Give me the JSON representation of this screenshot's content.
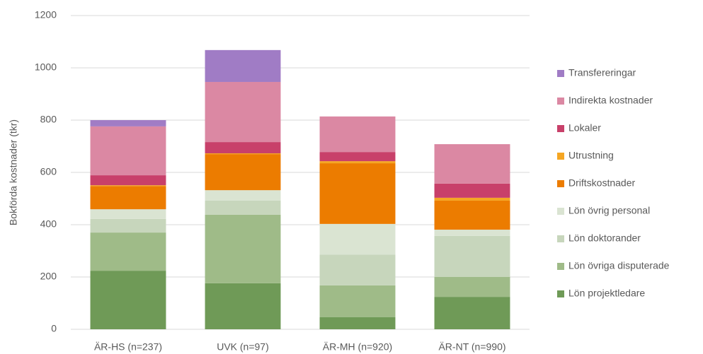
{
  "chart_data": {
    "type": "stacked_bar",
    "y_axis_label": "Bokförda kostnader (tkr)",
    "categories": [
      "ÄR-HS (n=237)",
      "UVK (n=97)",
      "ÄR-MH (n=920)",
      "ÄR-NT (n=990)"
    ],
    "ylim": [
      0,
      1200
    ],
    "yticks": [
      0,
      200,
      400,
      600,
      800,
      1000,
      1200
    ],
    "grid": true,
    "legend": "right",
    "series": [
      {
        "name": "Lön projektledare",
        "color": "#6f9a57",
        "values": [
          224,
          176,
          46,
          124
        ]
      },
      {
        "name": "Lön övriga disputerade",
        "color": "#9fbb88",
        "values": [
          146,
          262,
          122,
          76
        ]
      },
      {
        "name": "Lön doktorander",
        "color": "#c7d6bc",
        "values": [
          52,
          54,
          118,
          157
        ]
      },
      {
        "name": "Lön övrig personal",
        "color": "#dae4d2",
        "values": [
          37,
          40,
          117,
          24
        ]
      },
      {
        "name": "Driftskostnader",
        "color": "#ec7c00",
        "values": [
          89,
          138,
          232,
          111
        ]
      },
      {
        "name": "Utrustning",
        "color": "#f5a623",
        "values": [
          3,
          3,
          8,
          11
        ]
      },
      {
        "name": "Lokaler",
        "color": "#c8406a",
        "values": [
          38,
          43,
          35,
          54
        ]
      },
      {
        "name": "Indirekta kostnader",
        "color": "#db88a3",
        "values": [
          187,
          230,
          136,
          151
        ]
      },
      {
        "name": "Transfereringar",
        "color": "#a07cc5",
        "values": [
          24,
          122,
          0,
          0
        ]
      }
    ]
  }
}
